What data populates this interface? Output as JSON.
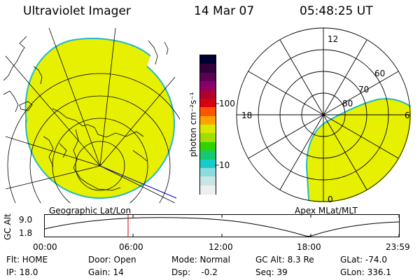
{
  "header": {
    "instrument": "Ultraviolet Imager",
    "date": "14 Mar 07",
    "time": "05:48:25 UT"
  },
  "colorbar": {
    "label": "photon cm⁻²s⁻¹",
    "tick_100": "100",
    "tick_10": "10",
    "colors": [
      "#000033",
      "#33003a",
      "#5a0050",
      "#8a006a",
      "#b00030",
      "#d80010",
      "#ff5500",
      "#ffa200",
      "#d8e800",
      "#9ee000",
      "#33d100",
      "#16c870",
      "#19cbcb",
      "#8cdcdc",
      "#c8e4e4",
      "#eeeeee"
    ]
  },
  "left_panel": {
    "caption": "Geographic Lat/Lon",
    "fill_color": "#e6f000",
    "rim_color": "#22b8c8"
  },
  "right_panel": {
    "caption": "Apex MLat/MLT",
    "mlt_12": "12",
    "mlt_18": "18",
    "mlt_6": "6",
    "mlt_0": "0",
    "lat_60": "60",
    "lat_70": "70",
    "lat_80": "80",
    "fill_color": "#e6f000"
  },
  "timeline": {
    "axis_label": "GC Alt",
    "y_top": "9.0",
    "y_bottom": "1.8",
    "ticks": [
      "00:00",
      "06:00",
      "12:00",
      "18:00",
      "23:59"
    ],
    "marker_color": "#cc0000"
  },
  "status": {
    "flt": "Flt: HOME",
    "ip": "IP: 18.0",
    "door": "Door: Open",
    "gain": "Gain: 14",
    "mode": "Mode: Normal",
    "dsp": "Dsp:    -0.2",
    "gcalt": "GC Alt: 8.3 Re",
    "seq": "Seq: 39",
    "glat": "GLat: -74.0",
    "glon": "GLon: 336.1"
  }
}
